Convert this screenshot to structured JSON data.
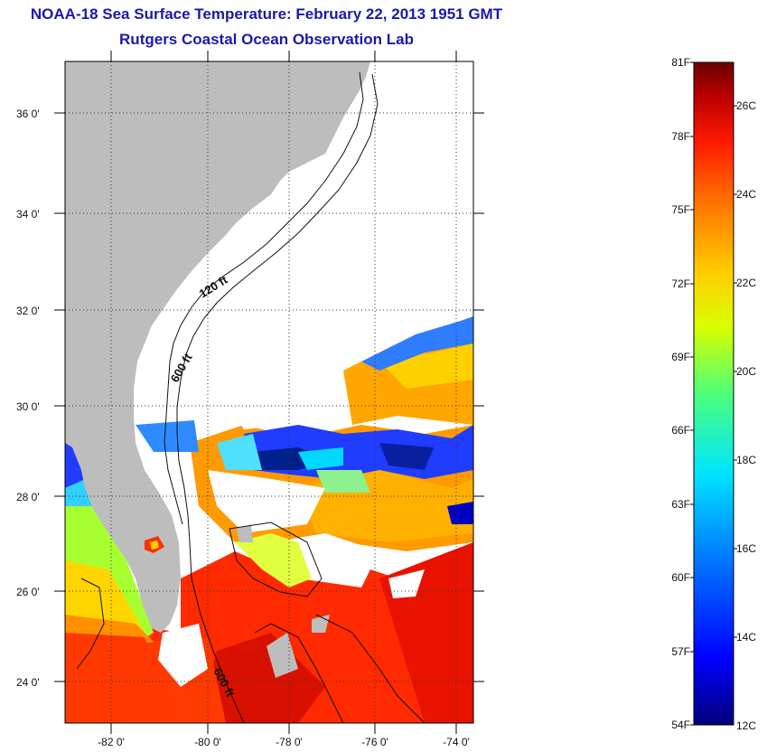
{
  "header": {
    "title": "NOAA-18 Sea Surface Temperature:  February 22, 2013 1951 GMT",
    "subtitle": "Rutgers Coastal Ocean Observation Lab"
  },
  "map": {
    "lat_ticks": [
      "36 0'",
      "34 0'",
      "32 0'",
      "30 0'",
      "28 0'",
      "26 0'",
      "24 0'"
    ],
    "lon_ticks": [
      "-82 0'",
      "-80 0'",
      "-78 0'",
      "-76 0'",
      "-74 0'"
    ],
    "contour_labels": [
      "120 ft",
      "600 ft",
      "600 ft"
    ],
    "colors": {
      "land": "#bdbdbd",
      "cloud": "#ffffff"
    }
  },
  "colorbar": {
    "fahrenheit": [
      "81F",
      "78F",
      "75F",
      "72F",
      "69F",
      "66F",
      "63F",
      "60F",
      "57F",
      "54F"
    ],
    "celsius": [
      "26C",
      "24C",
      "22C",
      "20C",
      "18C",
      "16C",
      "14C",
      "12C"
    ],
    "stops": [
      "#00007a",
      "#0000ff",
      "#0080ff",
      "#00e5ff",
      "#4cff7a",
      "#d8ff00",
      "#ffd000",
      "#ff7a00",
      "#ff1a00",
      "#b80000",
      "#6b0000"
    ]
  }
}
